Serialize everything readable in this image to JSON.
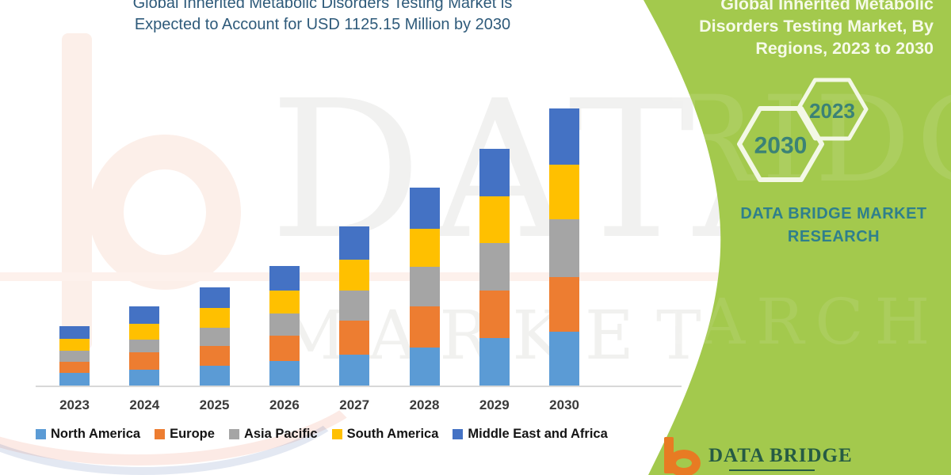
{
  "title": {
    "line1": "Global Inherited Metabolic Disorders Testing Market is",
    "line2": "Expected to Account for USD 1125.15 Million by 2030"
  },
  "chart_data": {
    "type": "bar",
    "stacked": true,
    "unit": "USD Million",
    "title": "Global Inherited Metabolic Disorders Testing Market is Expected to Account for USD 1125.15 Million by 2030",
    "categories": [
      "2023",
      "2024",
      "2025",
      "2026",
      "2027",
      "2028",
      "2029",
      "2030"
    ],
    "series": [
      {
        "name": "North America",
        "color": "#5B9BD5",
        "values": [
          50,
          64,
          80,
          99,
          125,
          155,
          193,
          219
        ]
      },
      {
        "name": "Europe",
        "color": "#ED7D31",
        "values": [
          47,
          70,
          80,
          102,
          137,
          166,
          193,
          222
        ]
      },
      {
        "name": "Asia Pacific",
        "color": "#A5A5A5",
        "values": [
          44,
          54,
          75,
          91,
          123,
          161,
          193,
          234
        ]
      },
      {
        "name": "South America",
        "color": "#FFC000",
        "values": [
          48,
          64,
          79,
          94,
          127,
          155,
          190,
          222
        ]
      },
      {
        "name": "Middle East and Africa",
        "color": "#4472C4",
        "values": [
          53,
          69,
          85,
          99,
          133,
          167,
          192,
          228
        ]
      }
    ],
    "totals_estimated": [
      242,
      321,
      399,
      485,
      645,
      804,
      961,
      1125.15
    ],
    "ylim": [
      0,
      1200
    ],
    "gridlines": false,
    "y_axis_visible": false,
    "legend_position": "bottom"
  },
  "side_panel": {
    "bg_color": "#a3c94d",
    "title_lines": [
      "Global Inherited Metabolic",
      "Disorders Testing Market, By",
      "Regions, 2023 to 2030"
    ],
    "hexagons": [
      {
        "label": "2030"
      },
      {
        "label": "2023"
      }
    ],
    "brand_lines": [
      "DATA BRIDGE MARKET",
      "RESEARCH"
    ],
    "text_color": "#2f7f8c",
    "hexagon_text_color": "#3b8276"
  },
  "footer_logo": {
    "text": "DATA BRIDGE"
  },
  "watermark": {
    "line1": "DATA BRIDGE",
    "line2": "MARKET RESEARCH"
  }
}
